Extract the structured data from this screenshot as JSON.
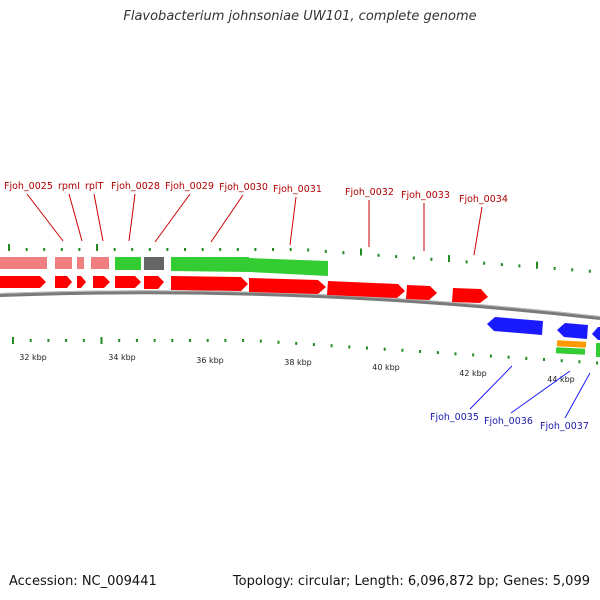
{
  "title": "Flavobacterium johnsoniae UW101, complete genome",
  "footer": {
    "accession": "Accession: NC_009441",
    "summary": "Topology: circular; Length: 6,096,872 bp; Genes: 5,099"
  },
  "colors": {
    "forward_cds": "#ff0000",
    "forward_gene_faded": "#f08080",
    "forward_rna": "#33cc33",
    "grey_feature": "#666666",
    "reverse_cds": "#1a1aff",
    "orange_feature": "#ff9900",
    "tick": "#228b22",
    "backbone": "#888888"
  },
  "scale": {
    "ticks": [
      {
        "kbp": 32,
        "label": "32 kbp"
      },
      {
        "kbp": 34,
        "label": "34 kbp"
      },
      {
        "kbp": 36,
        "label": "36 kbp"
      },
      {
        "kbp": 38,
        "label": "38 kbp"
      },
      {
        "kbp": 40,
        "label": "40 kbp"
      },
      {
        "kbp": 42,
        "label": "42 kbp"
      },
      {
        "kbp": 44,
        "label": "44 kbp"
      }
    ]
  },
  "top_labels": [
    "Fjoh_0025",
    "rpmI",
    "rplT",
    "Fjoh_0028",
    "Fjoh_0029",
    "Fjoh_0030",
    "Fjoh_0031",
    "Fjoh_0032",
    "Fjoh_0033",
    "Fjoh_0034"
  ],
  "bottom_labels": [
    "Fjoh_0035",
    "Fjoh_0036",
    "Fjoh_0037"
  ]
}
